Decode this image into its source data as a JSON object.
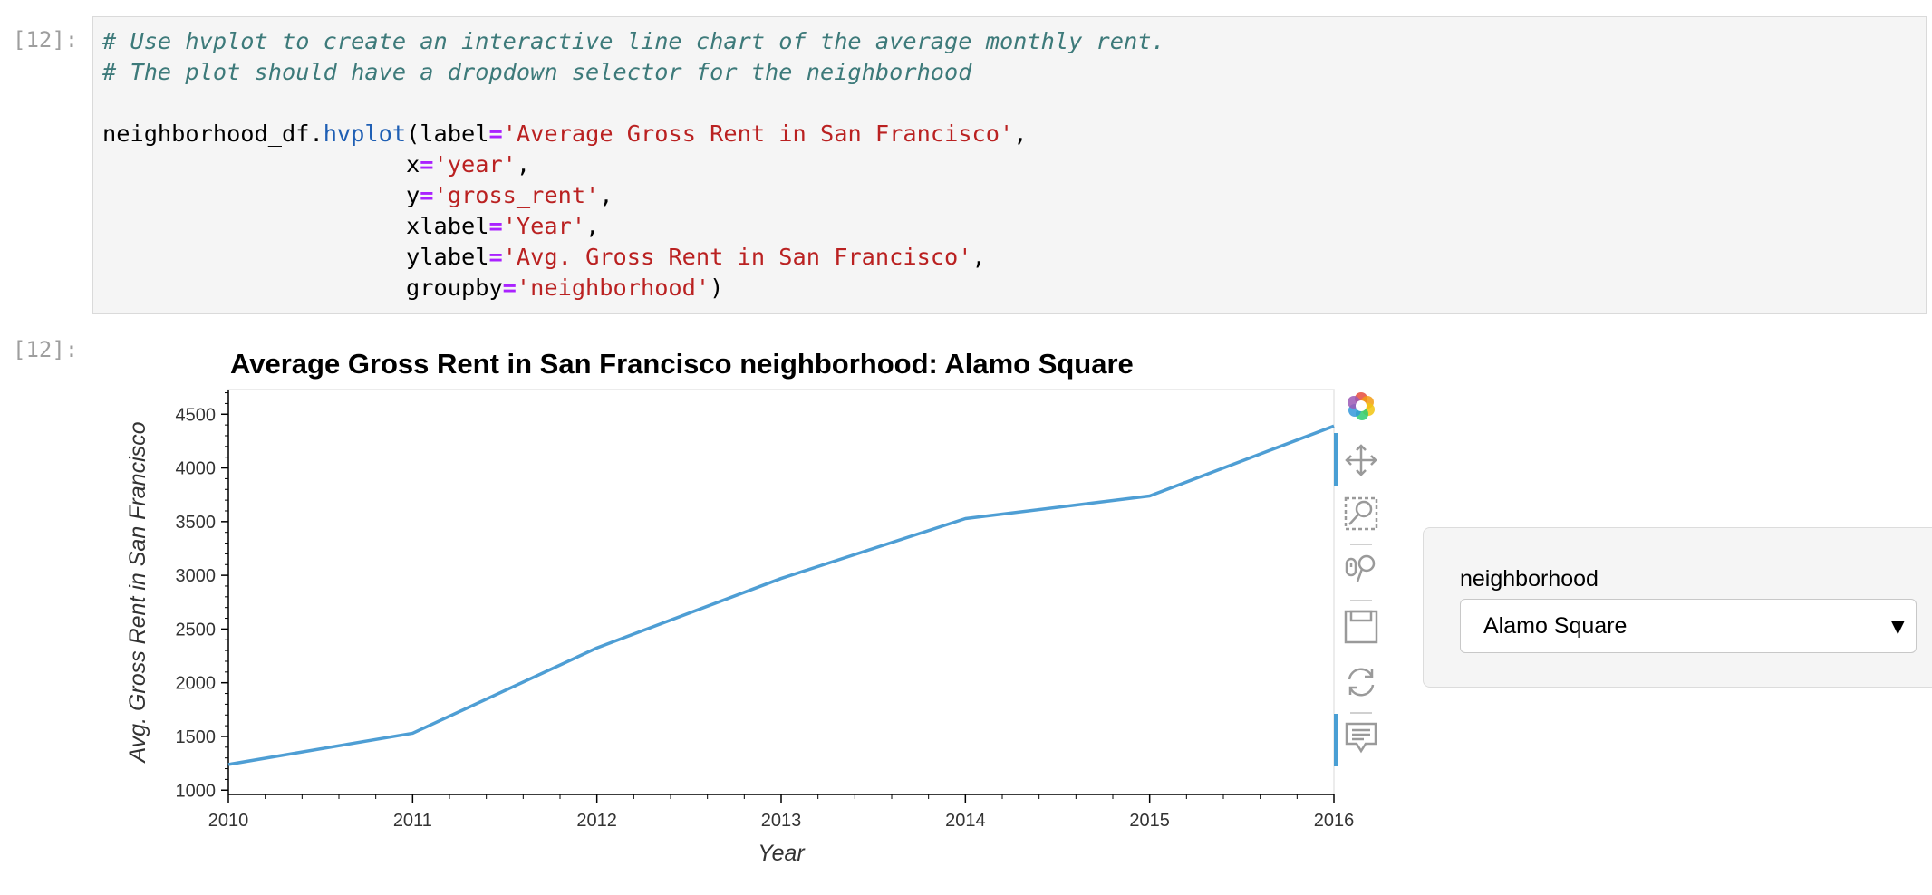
{
  "cells": {
    "input_prompt": "[12]:",
    "output_prompt": "[12]:",
    "code_lines": [
      [
        {
          "t": "# Use hvplot to create an interactive line chart of the average monthly rent.",
          "c": "cm"
        }
      ],
      [
        {
          "t": "# The plot should have a dropdown selector for the neighborhood",
          "c": "cm"
        }
      ],
      [],
      [
        {
          "t": "neighborhood_df.",
          "c": ""
        },
        {
          "t": "hvplot",
          "c": "tok-fn"
        },
        {
          "t": "(label",
          "c": ""
        },
        {
          "t": "=",
          "c": "tok-op"
        },
        {
          "t": "'Average Gross Rent in San Francisco'",
          "c": "tok-str"
        },
        {
          "t": ",",
          "c": ""
        }
      ],
      [
        {
          "t": "                      x",
          "c": ""
        },
        {
          "t": "=",
          "c": "tok-op"
        },
        {
          "t": "'year'",
          "c": "tok-str"
        },
        {
          "t": ",",
          "c": ""
        }
      ],
      [
        {
          "t": "                      y",
          "c": ""
        },
        {
          "t": "=",
          "c": "tok-op"
        },
        {
          "t": "'gross_rent'",
          "c": "tok-str"
        },
        {
          "t": ",",
          "c": ""
        }
      ],
      [
        {
          "t": "                      xlabel",
          "c": ""
        },
        {
          "t": "=",
          "c": "tok-op"
        },
        {
          "t": "'Year'",
          "c": "tok-str"
        },
        {
          "t": ",",
          "c": ""
        }
      ],
      [
        {
          "t": "                      ylabel",
          "c": ""
        },
        {
          "t": "=",
          "c": "tok-op"
        },
        {
          "t": "'Avg. Gross Rent in San Francisco'",
          "c": "tok-str"
        },
        {
          "t": ",",
          "c": ""
        }
      ],
      [
        {
          "t": "                      groupby",
          "c": ""
        },
        {
          "t": "=",
          "c": "tok-op"
        },
        {
          "t": "'neighborhood'",
          "c": "tok-str"
        },
        {
          "t": ")",
          "c": ""
        }
      ]
    ]
  },
  "plot": {
    "title": "Average Gross Rent in San Francisco  neighborhood: Alamo Square"
  },
  "toolbar": {
    "icons": [
      "bokeh-logo-icon",
      "pan-icon",
      "box-zoom-icon",
      "wheel-zoom-icon",
      "save-icon",
      "reset-icon",
      "hover-icon"
    ]
  },
  "widget": {
    "label": "neighborhood",
    "selected": "Alamo Square",
    "caret": "▼"
  },
  "chart_data": {
    "type": "line",
    "title": "Average Gross Rent in San Francisco  neighborhood: Alamo Square",
    "xlabel": "Year",
    "ylabel": "Avg. Gross Rent in San Francisco",
    "x": [
      2010,
      2011,
      2012,
      2013,
      2014,
      2015,
      2016
    ],
    "series": [
      {
        "values": [
          1239,
          1530,
          2324,
          2971,
          3528,
          3739,
          4390
        ]
      }
    ],
    "xlim": [
      2010,
      2016
    ],
    "ylim": [
      960,
      4730
    ],
    "xticks": [
      2010,
      2011,
      2012,
      2013,
      2014,
      2015,
      2016
    ],
    "yticks": [
      1000,
      1500,
      2000,
      2500,
      3000,
      3500,
      4000,
      4500
    ],
    "line_color": "#4e9ed4",
    "grid": false
  }
}
